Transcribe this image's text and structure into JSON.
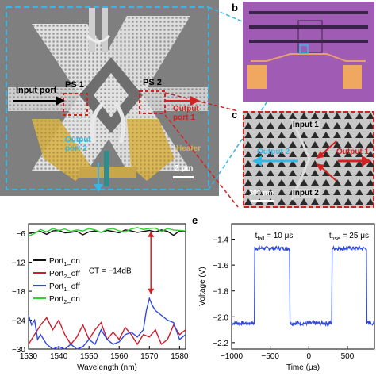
{
  "panel_letters": {
    "b": "b",
    "c": "c",
    "e": "e"
  },
  "panel_a": {
    "labels": {
      "ps1": "PS 1",
      "ps2": "PS 2",
      "input_port": "Input port",
      "output_port_1": "Output port 1",
      "output_port_2": "Output port 2",
      "heater": "Heater",
      "scale": "2 μm"
    }
  },
  "panel_c": {
    "labels": {
      "input1": "Input 1",
      "input2": "Input 2",
      "output1": "Output 1",
      "output2": "Output 2",
      "scale": "300 nm"
    }
  },
  "colors": {
    "accent_blue": "#35b8e8",
    "accent_red": "#d42020",
    "heater_gold": "#d8b44a",
    "chip_purple": "#a05cb4",
    "series_port1_on": "#111111",
    "series_port2_off": "#d01c2c",
    "series_port1_off": "#2f49e0",
    "series_port2_on": "#2fd02f",
    "trace_e": "#2f49e0"
  },
  "chart_data": [
    {
      "type": "line",
      "panel": "d",
      "xlabel": "Wavelength (nm)",
      "ylabel": "",
      "xlim": [
        1530,
        1582
      ],
      "ylim": [
        -30,
        -4
      ],
      "xticks": [
        1530,
        1540,
        1550,
        1560,
        1570,
        1580
      ],
      "yticks": [
        -6,
        -12,
        -18,
        -24,
        -30
      ],
      "annotation": "CT = −14dB",
      "legend_position": "left",
      "series": [
        {
          "name": "Port1_on",
          "legend_main": "Port",
          "legend_sub": "1",
          "legend_suffix": "_on",
          "color_key": "series_port1_on",
          "x": [
            1530,
            1532,
            1534,
            1536,
            1538,
            1540,
            1542,
            1544,
            1546,
            1548,
            1550,
            1552,
            1554,
            1556,
            1558,
            1560,
            1562,
            1564,
            1566,
            1568,
            1570,
            1572,
            1574,
            1576,
            1578,
            1580,
            1582
          ],
          "y": [
            -6.0,
            -5.8,
            -5.6,
            -6.2,
            -5.5,
            -5.4,
            -5.9,
            -5.8,
            -5.6,
            -6.3,
            -5.7,
            -5.5,
            -5.8,
            -5.4,
            -5.6,
            -5.9,
            -5.3,
            -5.5,
            -5.8,
            -5.6,
            -5.4,
            -5.7,
            -5.3,
            -5.6,
            -6.4,
            -5.5,
            -5.7
          ]
        },
        {
          "name": "Port2_off",
          "legend_main": "Port",
          "legend_sub": "2",
          "legend_suffix": "_off",
          "color_key": "series_port2_off",
          "x": [
            1530,
            1532,
            1534,
            1536,
            1538,
            1540,
            1542,
            1544,
            1546,
            1548,
            1550,
            1552,
            1554,
            1556,
            1558,
            1560,
            1562,
            1564,
            1566,
            1568,
            1570,
            1572,
            1574,
            1576,
            1578,
            1580,
            1582
          ],
          "y": [
            -29,
            -27,
            -25,
            -23.5,
            -26,
            -24,
            -27,
            -29,
            -27.5,
            -25,
            -28,
            -26,
            -24.5,
            -28,
            -26.5,
            -28,
            -25.5,
            -27,
            -29,
            -27,
            -27.5,
            -26,
            -29,
            -28,
            -25,
            -27,
            -26
          ]
        },
        {
          "name": "Port1_off",
          "legend_main": "Port",
          "legend_sub": "1",
          "legend_suffix": "_off",
          "color_key": "series_port1_off",
          "x": [
            1530,
            1531,
            1532,
            1533,
            1534,
            1536,
            1538,
            1540,
            1542,
            1544,
            1546,
            1548,
            1550,
            1552,
            1554,
            1556,
            1558,
            1560,
            1562,
            1564,
            1566,
            1568,
            1569,
            1570,
            1571,
            1572,
            1574,
            1576,
            1578,
            1580,
            1582
          ],
          "y": [
            -23,
            -25,
            -24,
            -28,
            -27,
            -29,
            -30,
            -29.5,
            -30,
            -29,
            -30,
            -29.5,
            -28,
            -29,
            -26,
            -28,
            -29,
            -28.5,
            -27,
            -26.5,
            -27.5,
            -26,
            -22,
            -19.5,
            -21,
            -22,
            -23,
            -24,
            -24.5,
            -28,
            -27
          ]
        },
        {
          "name": "Port2_on",
          "legend_main": "Port",
          "legend_sub": "2",
          "legend_suffix": "_on",
          "color_key": "series_port2_on",
          "x": [
            1530,
            1532,
            1534,
            1536,
            1538,
            1540,
            1542,
            1544,
            1546,
            1548,
            1550,
            1552,
            1554,
            1556,
            1558,
            1560,
            1562,
            1564,
            1566,
            1568,
            1570,
            1572,
            1574,
            1576,
            1578,
            1580,
            1582
          ],
          "y": [
            -6.6,
            -6.0,
            -5.2,
            -5.7,
            -5.0,
            -5.4,
            -5.1,
            -5.6,
            -5.3,
            -5.5,
            -5.0,
            -5.3,
            -5.8,
            -5.2,
            -5.0,
            -5.5,
            -5.7,
            -5.1,
            -4.8,
            -5.2,
            -5.0,
            -4.9,
            -5.6,
            -5.0,
            -5.3,
            -5.4,
            -5.5
          ]
        }
      ]
    },
    {
      "type": "line",
      "panel": "e",
      "xlabel": "Time (μs)",
      "ylabel": "Voltage (V)",
      "xlim": [
        -1000,
        850
      ],
      "ylim": [
        -2.25,
        -1.28
      ],
      "xticks": [
        -1000,
        -500,
        0,
        500
      ],
      "yticks": [
        -1.4,
        -1.6,
        -1.8,
        -2.0,
        -2.2
      ],
      "annotations": [
        {
          "main": "t",
          "sub": "fall",
          "value": " = 10 μs"
        },
        {
          "main": "t",
          "sub": "rise",
          "value": " = 25 μs"
        }
      ],
      "series": [
        {
          "name": "",
          "color_key": "trace_e",
          "high": -1.47,
          "low": -2.05,
          "pulses": [
            [
              -700,
              -250
            ],
            [
              300,
              750
            ]
          ]
        }
      ]
    }
  ]
}
